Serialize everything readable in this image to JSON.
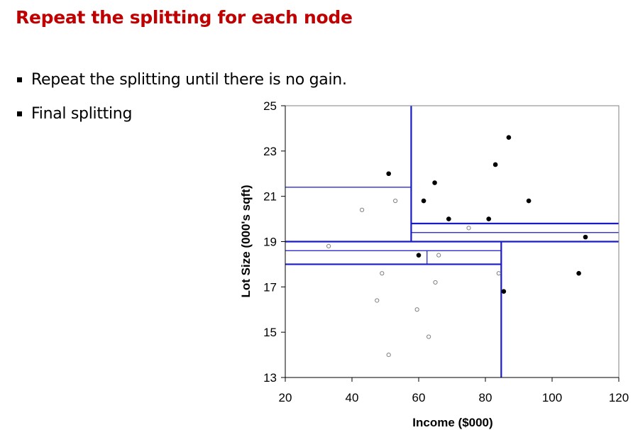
{
  "slide": {
    "title": "Repeat the splitting for each node",
    "bullets": [
      "Repeat the splitting until there is no gain.",
      "Final splitting"
    ]
  },
  "colors": {
    "title": "#c00000",
    "split_line": "#1a1ac8",
    "point_filled": "#000000",
    "point_open": "#808080"
  },
  "chart_data": {
    "type": "scatter",
    "xlabel": "Income ($000)",
    "ylabel": "Lot Size (000's sqft)",
    "xlim": [
      20,
      120
    ],
    "ylim": [
      13,
      25
    ],
    "xticks": [
      20,
      40,
      60,
      80,
      100,
      120
    ],
    "yticks": [
      13,
      15,
      17,
      19,
      21,
      23,
      25
    ],
    "grid": false,
    "series": [
      {
        "marker": "filled",
        "points": [
          {
            "x": 51,
            "y": 22.0
          },
          {
            "x": 61.5,
            "y": 20.8
          },
          {
            "x": 64.8,
            "y": 21.6
          },
          {
            "x": 69,
            "y": 20.0
          },
          {
            "x": 81,
            "y": 20.0
          },
          {
            "x": 83,
            "y": 22.4
          },
          {
            "x": 87,
            "y": 23.6
          },
          {
            "x": 93,
            "y": 20.8
          },
          {
            "x": 110,
            "y": 19.2
          },
          {
            "x": 60,
            "y": 18.4
          },
          {
            "x": 85.5,
            "y": 16.8
          },
          {
            "x": 108,
            "y": 17.6
          }
        ]
      },
      {
        "marker": "open",
        "points": [
          {
            "x": 43,
            "y": 20.4
          },
          {
            "x": 53,
            "y": 20.8
          },
          {
            "x": 75,
            "y": 19.6
          },
          {
            "x": 33,
            "y": 18.8
          },
          {
            "x": 66,
            "y": 18.4
          },
          {
            "x": 49,
            "y": 17.6
          },
          {
            "x": 84,
            "y": 17.6
          },
          {
            "x": 65,
            "y": 17.2
          },
          {
            "x": 47.5,
            "y": 16.4
          },
          {
            "x": 59.5,
            "y": 16.0
          },
          {
            "x": 63,
            "y": 14.8
          },
          {
            "x": 51,
            "y": 14.0
          }
        ]
      }
    ],
    "splits": [
      {
        "orientation": "vertical",
        "at": 57.75,
        "from": 19.0,
        "to": 25.0,
        "weight": "thick"
      },
      {
        "orientation": "horizontal",
        "at": 19.0,
        "from": 20.0,
        "to": 120.0,
        "weight": "thick"
      },
      {
        "orientation": "horizontal",
        "at": 21.4,
        "from": 20.0,
        "to": 57.75,
        "weight": "thin"
      },
      {
        "orientation": "horizontal",
        "at": 19.8,
        "from": 57.75,
        "to": 120.0,
        "weight": "thick"
      },
      {
        "orientation": "horizontal",
        "at": 19.4,
        "from": 57.75,
        "to": 120.0,
        "weight": "thin"
      },
      {
        "orientation": "vertical",
        "at": 84.75,
        "from": 13.0,
        "to": 19.0,
        "weight": "thick"
      },
      {
        "orientation": "horizontal",
        "at": 18.0,
        "from": 20.0,
        "to": 84.75,
        "weight": "thick"
      },
      {
        "orientation": "horizontal",
        "at": 18.6,
        "from": 20.0,
        "to": 84.75,
        "weight": "thin"
      },
      {
        "orientation": "vertical",
        "at": 62.5,
        "from": 18.0,
        "to": 18.6,
        "weight": "thin"
      }
    ]
  }
}
